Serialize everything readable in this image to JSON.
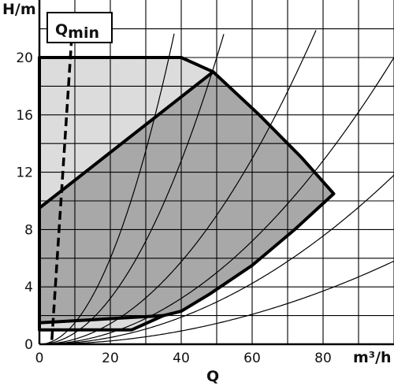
{
  "chart_data": {
    "type": "line",
    "ylabel": "H/m",
    "xlabel": "Q",
    "xunit": "m³/h",
    "xlim": [
      0,
      100
    ],
    "ylim": [
      0,
      22
    ],
    "xticks": [
      0,
      20,
      40,
      60,
      80
    ],
    "yticks": [
      0,
      4,
      8,
      12,
      16,
      20
    ],
    "grid": true,
    "annotations": [
      {
        "text": "Qmin",
        "main": "Q",
        "sub": "min"
      }
    ],
    "outer_envelope": [
      [
        0,
        20
      ],
      [
        40,
        20
      ],
      [
        49,
        19
      ],
      [
        62,
        16
      ],
      [
        74,
        13
      ],
      [
        83,
        10.5
      ],
      [
        72,
        8
      ],
      [
        60,
        5.5
      ],
      [
        48,
        3.5
      ],
      [
        40,
        2.3
      ],
      [
        35,
        2.0
      ],
      [
        26,
        1.0
      ],
      [
        0,
        1.0
      ]
    ],
    "regions": [
      {
        "name": "light",
        "color": "#dcdcdc",
        "points": [
          [
            0,
            20
          ],
          [
            40,
            20
          ],
          [
            49,
            19
          ],
          [
            0,
            9.5
          ]
        ]
      },
      {
        "name": "dark",
        "color": "#a8a8a8",
        "points": [
          [
            0,
            9.5
          ],
          [
            49,
            19
          ],
          [
            62,
            16
          ],
          [
            74,
            13
          ],
          [
            83,
            10.5
          ],
          [
            72,
            8
          ],
          [
            60,
            5.5
          ],
          [
            48,
            3.5
          ],
          [
            40,
            2.3
          ],
          [
            35,
            2.0
          ],
          [
            0,
            1.5
          ]
        ]
      },
      {
        "name": "low",
        "color": "#dcdcdc",
        "points": [
          [
            0,
            1.5
          ],
          [
            35,
            2.0
          ],
          [
            26,
            1.0
          ],
          [
            0,
            1.0
          ]
        ]
      }
    ],
    "boundaries": [
      [
        [
          0,
          9.5
        ],
        [
          49,
          19
        ]
      ],
      [
        [
          0,
          1.5
        ],
        [
          35,
          2.0
        ]
      ]
    ],
    "qmin_line": [
      [
        3.5,
        0.3
      ],
      [
        9,
        21
      ]
    ],
    "system_curves": [
      {
        "k": 0.015,
        "x0": 0,
        "x1": 38
      },
      {
        "k": 0.008,
        "x0": 0,
        "x1": 52
      },
      {
        "k": 0.0036,
        "x0": 0,
        "x1": 78
      },
      {
        "k": 0.002,
        "x0": 0,
        "x1": 100
      },
      {
        "k": 0.00118,
        "x0": 0,
        "x1": 100
      },
      {
        "k": 0.00058,
        "x0": 0,
        "x1": 100
      }
    ]
  }
}
